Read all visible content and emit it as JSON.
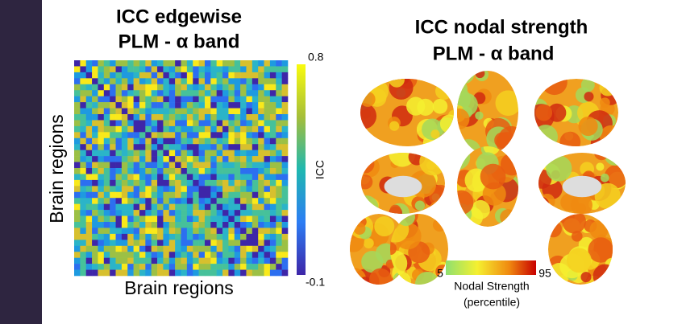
{
  "left_panel": {
    "title_lines": [
      "ICC edgewise",
      "PLM - α band"
    ],
    "y_label": "Brain regions",
    "x_label": "Brain regions",
    "colorbar": {
      "label": "ICC",
      "max_label": "0.8",
      "min_label": "-0.1"
    }
  },
  "right_panel": {
    "title_lines": [
      "ICC nodal strength",
      "PLM - α band"
    ],
    "colorbar": {
      "min_label": "5",
      "max_label": "95",
      "label_lines": [
        "Nodal Strength",
        "(percentile)"
      ]
    }
  }
}
